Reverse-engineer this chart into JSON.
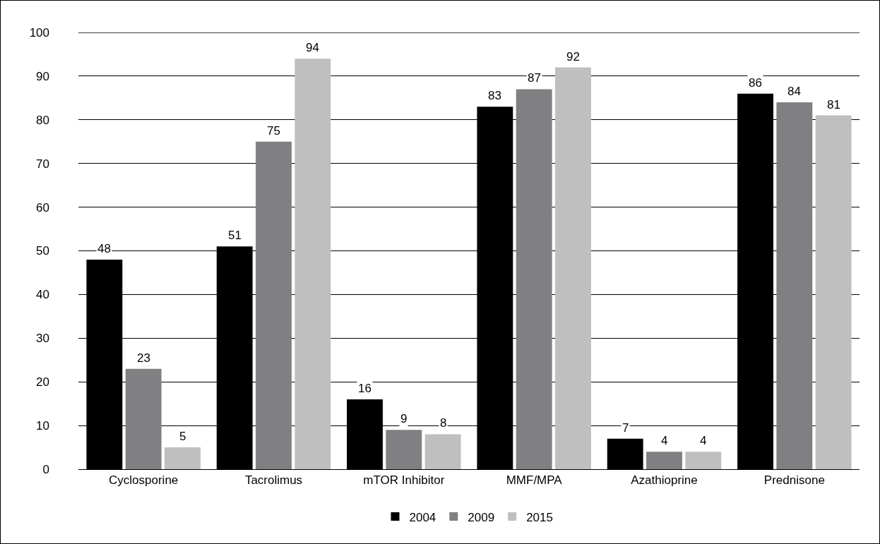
{
  "chart_data": {
    "type": "bar",
    "categories": [
      "Cyclosporine",
      "Tacrolimus",
      "mTOR Inhibitor",
      "MMF/MPA",
      "Azathioprine",
      "Prednisone"
    ],
    "series": [
      {
        "name": "2004",
        "color": "#000000",
        "values": [
          48,
          51,
          16,
          83,
          7,
          86
        ]
      },
      {
        "name": "2009",
        "color": "#808083",
        "values": [
          23,
          75,
          9,
          87,
          4,
          84
        ]
      },
      {
        "name": "2015",
        "color": "#bfbfbf",
        "values": [
          5,
          94,
          8,
          92,
          4,
          81
        ]
      }
    ],
    "ylim": [
      0,
      100
    ],
    "yticks": [
      0,
      10,
      20,
      30,
      40,
      50,
      60,
      70,
      80,
      90,
      100
    ],
    "grid": "y",
    "legend": "bottom",
    "data_labels": true
  }
}
